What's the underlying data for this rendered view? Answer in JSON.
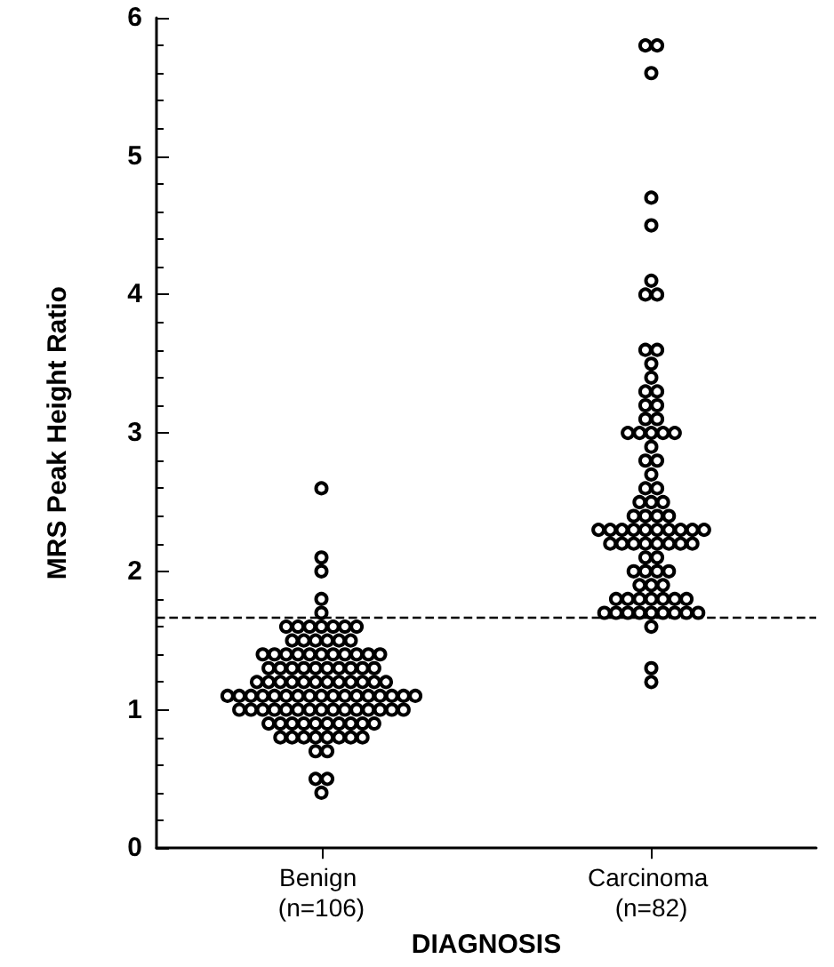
{
  "chart_data": {
    "type": "scatter",
    "xlabel": "DIAGNOSIS",
    "ylabel": "MRS Peak Height Ratio",
    "categories": [
      "Benign (n=106)",
      "Carcinoma (n=82)"
    ],
    "ylim": [
      0,
      6
    ],
    "yticks": [
      0,
      1,
      2,
      3,
      4,
      5,
      6
    ],
    "marker": "circle",
    "ref_lines": [
      {
        "axis": "y",
        "value": 1.67,
        "color": "#000000",
        "line_style": "dashed"
      }
    ],
    "series": [
      {
        "color": "#000000",
        "x": [
          "Benign (n=106)",
          "Benign (n=106)",
          "Benign (n=106)",
          "Benign (n=106)",
          "Benign (n=106)",
          "Benign (n=106)",
          "Benign (n=106)",
          "Benign (n=106)",
          "Benign (n=106)",
          "Benign (n=106)",
          "Benign (n=106)",
          "Benign (n=106)",
          "Benign (n=106)",
          "Benign (n=106)",
          "Benign (n=106)",
          "Benign (n=106)",
          "Benign (n=106)",
          "Benign (n=106)",
          "Benign (n=106)",
          "Benign (n=106)",
          "Benign (n=106)",
          "Benign (n=106)",
          "Benign (n=106)",
          "Benign (n=106)",
          "Benign (n=106)",
          "Benign (n=106)",
          "Benign (n=106)",
          "Benign (n=106)",
          "Benign (n=106)",
          "Benign (n=106)",
          "Benign (n=106)",
          "Benign (n=106)",
          "Benign (n=106)",
          "Benign (n=106)",
          "Benign (n=106)",
          "Benign (n=106)",
          "Benign (n=106)",
          "Benign (n=106)",
          "Benign (n=106)",
          "Benign (n=106)",
          "Benign (n=106)",
          "Benign (n=106)",
          "Benign (n=106)",
          "Benign (n=106)",
          "Benign (n=106)",
          "Benign (n=106)",
          "Benign (n=106)",
          "Benign (n=106)",
          "Benign (n=106)",
          "Benign (n=106)",
          "Benign (n=106)",
          "Benign (n=106)",
          "Benign (n=106)",
          "Benign (n=106)",
          "Benign (n=106)",
          "Benign (n=106)",
          "Benign (n=106)",
          "Benign (n=106)",
          "Benign (n=106)",
          "Benign (n=106)",
          "Benign (n=106)",
          "Benign (n=106)",
          "Benign (n=106)",
          "Benign (n=106)",
          "Benign (n=106)",
          "Benign (n=106)",
          "Benign (n=106)",
          "Benign (n=106)",
          "Benign (n=106)",
          "Benign (n=106)",
          "Benign (n=106)",
          "Benign (n=106)",
          "Benign (n=106)",
          "Benign (n=106)",
          "Benign (n=106)",
          "Benign (n=106)",
          "Benign (n=106)",
          "Benign (n=106)",
          "Benign (n=106)",
          "Benign (n=106)",
          "Benign (n=106)",
          "Benign (n=106)",
          "Benign (n=106)",
          "Benign (n=106)",
          "Benign (n=106)",
          "Benign (n=106)",
          "Benign (n=106)",
          "Benign (n=106)",
          "Benign (n=106)",
          "Benign (n=106)",
          "Benign (n=106)",
          "Benign (n=106)",
          "Benign (n=106)",
          "Benign (n=106)",
          "Benign (n=106)",
          "Benign (n=106)",
          "Benign (n=106)",
          "Benign (n=106)",
          "Benign (n=106)",
          "Benign (n=106)",
          "Benign (n=106)",
          "Benign (n=106)",
          "Benign (n=106)",
          "Benign (n=106)",
          "Benign (n=106)",
          "Benign (n=106)"
        ],
        "values": [
          2.6,
          2.1,
          2.0,
          1.8,
          1.7,
          1.6,
          1.6,
          1.6,
          1.6,
          1.6,
          1.6,
          1.6,
          1.5,
          1.5,
          1.5,
          1.5,
          1.5,
          1.5,
          1.4,
          1.4,
          1.4,
          1.4,
          1.4,
          1.4,
          1.4,
          1.4,
          1.4,
          1.4,
          1.4,
          1.3,
          1.3,
          1.3,
          1.3,
          1.3,
          1.3,
          1.3,
          1.3,
          1.3,
          1.3,
          1.2,
          1.2,
          1.2,
          1.2,
          1.2,
          1.2,
          1.2,
          1.2,
          1.2,
          1.2,
          1.2,
          1.2,
          1.1,
          1.1,
          1.1,
          1.1,
          1.1,
          1.1,
          1.1,
          1.1,
          1.1,
          1.1,
          1.1,
          1.1,
          1.1,
          1.1,
          1.1,
          1.1,
          1.1,
          1.0,
          1.0,
          1.0,
          1.0,
          1.0,
          1.0,
          1.0,
          1.0,
          1.0,
          1.0,
          1.0,
          1.0,
          1.0,
          1.0,
          1.0,
          0.9,
          0.9,
          0.9,
          0.9,
          0.9,
          0.9,
          0.9,
          0.9,
          0.9,
          0.9,
          0.8,
          0.8,
          0.8,
          0.8,
          0.8,
          0.8,
          0.8,
          0.8,
          0.7,
          0.7,
          0.5,
          0.5,
          0.4
        ]
      },
      {
        "color": "#000000",
        "x": [
          "Carcinoma (n=82)",
          "Carcinoma (n=82)",
          "Carcinoma (n=82)",
          "Carcinoma (n=82)",
          "Carcinoma (n=82)",
          "Carcinoma (n=82)",
          "Carcinoma (n=82)",
          "Carcinoma (n=82)",
          "Carcinoma (n=82)",
          "Carcinoma (n=82)",
          "Carcinoma (n=82)",
          "Carcinoma (n=82)",
          "Carcinoma (n=82)",
          "Carcinoma (n=82)",
          "Carcinoma (n=82)",
          "Carcinoma (n=82)",
          "Carcinoma (n=82)",
          "Carcinoma (n=82)",
          "Carcinoma (n=82)",
          "Carcinoma (n=82)",
          "Carcinoma (n=82)",
          "Carcinoma (n=82)",
          "Carcinoma (n=82)",
          "Carcinoma (n=82)",
          "Carcinoma (n=82)",
          "Carcinoma (n=82)",
          "Carcinoma (n=82)",
          "Carcinoma (n=82)",
          "Carcinoma (n=82)",
          "Carcinoma (n=82)",
          "Carcinoma (n=82)",
          "Carcinoma (n=82)",
          "Carcinoma (n=82)",
          "Carcinoma (n=82)",
          "Carcinoma (n=82)",
          "Carcinoma (n=82)",
          "Carcinoma (n=82)",
          "Carcinoma (n=82)",
          "Carcinoma (n=82)",
          "Carcinoma (n=82)",
          "Carcinoma (n=82)",
          "Carcinoma (n=82)",
          "Carcinoma (n=82)",
          "Carcinoma (n=82)",
          "Carcinoma (n=82)",
          "Carcinoma (n=82)",
          "Carcinoma (n=82)",
          "Carcinoma (n=82)",
          "Carcinoma (n=82)",
          "Carcinoma (n=82)",
          "Carcinoma (n=82)",
          "Carcinoma (n=82)",
          "Carcinoma (n=82)",
          "Carcinoma (n=82)",
          "Carcinoma (n=82)",
          "Carcinoma (n=82)",
          "Carcinoma (n=82)",
          "Carcinoma (n=82)",
          "Carcinoma (n=82)",
          "Carcinoma (n=82)",
          "Carcinoma (n=82)",
          "Carcinoma (n=82)",
          "Carcinoma (n=82)",
          "Carcinoma (n=82)",
          "Carcinoma (n=82)",
          "Carcinoma (n=82)",
          "Carcinoma (n=82)",
          "Carcinoma (n=82)",
          "Carcinoma (n=82)",
          "Carcinoma (n=82)",
          "Carcinoma (n=82)",
          "Carcinoma (n=82)",
          "Carcinoma (n=82)",
          "Carcinoma (n=82)",
          "Carcinoma (n=82)",
          "Carcinoma (n=82)",
          "Carcinoma (n=82)",
          "Carcinoma (n=82)",
          "Carcinoma (n=82)",
          "Carcinoma (n=82)",
          "Carcinoma (n=82)",
          "Carcinoma (n=82)"
        ],
        "values": [
          5.8,
          5.8,
          5.6,
          4.7,
          4.5,
          4.1,
          4.0,
          4.0,
          3.6,
          3.6,
          3.5,
          3.4,
          3.3,
          3.3,
          3.2,
          3.2,
          3.1,
          3.1,
          3.0,
          3.0,
          3.0,
          3.0,
          3.0,
          2.9,
          2.8,
          2.8,
          2.7,
          2.6,
          2.6,
          2.5,
          2.5,
          2.5,
          2.4,
          2.4,
          2.4,
          2.4,
          2.3,
          2.3,
          2.3,
          2.3,
          2.3,
          2.3,
          2.3,
          2.3,
          2.3,
          2.3,
          2.2,
          2.2,
          2.2,
          2.2,
          2.2,
          2.2,
          2.2,
          2.2,
          2.1,
          2.1,
          2.0,
          2.0,
          2.0,
          2.0,
          1.9,
          1.9,
          1.9,
          1.8,
          1.8,
          1.8,
          1.8,
          1.8,
          1.8,
          1.8,
          1.7,
          1.7,
          1.7,
          1.7,
          1.7,
          1.7,
          1.7,
          1.7,
          1.7,
          1.6,
          1.3,
          1.2
        ]
      }
    ]
  }
}
